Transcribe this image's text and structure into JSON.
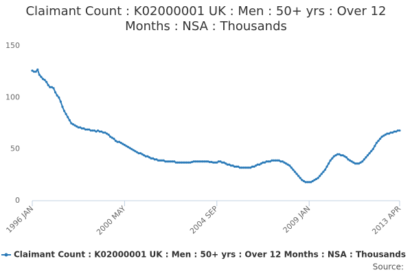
{
  "chart_data": {
    "type": "line",
    "title": "Claimant Count : K02000001 UK : Men : 50+ yrs : Over 12 Months : NSA : Thousands",
    "source": "Source:",
    "categories": [
      "1996 JAN",
      null,
      null,
      null,
      null,
      null,
      null,
      null,
      null,
      null,
      null,
      null,
      null,
      null,
      null,
      null,
      null,
      null,
      null,
      null,
      null,
      null,
      null,
      null,
      null,
      null,
      null,
      null,
      null,
      null,
      null,
      null,
      null,
      null,
      null,
      null,
      null,
      null,
      null,
      null,
      null,
      null,
      null,
      null,
      null,
      null,
      null,
      null,
      null,
      null,
      null,
      null,
      "2000 MAY",
      null,
      null,
      null,
      null,
      null,
      null,
      null,
      null,
      null,
      null,
      null,
      null,
      null,
      null,
      null,
      null,
      null,
      null,
      null,
      null,
      null,
      null,
      null,
      null,
      null,
      null,
      null,
      null,
      null,
      null,
      null,
      null,
      null,
      null,
      null,
      null,
      null,
      null,
      null,
      null,
      null,
      null,
      null,
      null,
      null,
      null,
      null,
      null,
      null,
      null,
      null,
      "2004 SEP",
      null,
      null,
      null,
      null,
      null,
      null,
      null,
      null,
      null,
      null,
      null,
      null,
      null,
      null,
      null,
      null,
      null,
      null,
      null,
      null,
      null,
      null,
      null,
      null,
      null,
      null,
      null,
      null,
      null,
      null,
      null,
      null,
      null,
      null,
      null,
      null,
      null,
      null,
      null,
      null,
      null,
      null,
      null,
      null,
      null,
      null,
      null,
      null,
      null,
      null,
      null,
      "2009 JAN",
      null,
      null,
      null,
      null,
      null,
      null,
      null,
      null,
      null,
      null,
      null,
      null,
      null,
      null,
      null,
      null,
      null,
      null,
      null,
      null,
      null,
      null,
      null,
      null,
      null,
      null,
      null,
      null,
      null,
      null,
      null,
      null,
      null,
      null,
      null,
      null,
      null,
      null,
      null,
      null,
      null,
      null,
      null,
      null,
      null,
      null,
      null,
      null,
      null,
      null,
      "2013 APR"
    ],
    "series": [
      {
        "name": "Claimant Count : K02000001 UK : Men : 50+ yrs : Over 12 Months : NSA : Thousands",
        "color": "#2a7ab8",
        "values": [
          126,
          125,
          125,
          127,
          122,
          120,
          118,
          117,
          115,
          112,
          110,
          110,
          109,
          105,
          102,
          100,
          96,
          91,
          87,
          84,
          81,
          78,
          75,
          74,
          73,
          72,
          71,
          71,
          70,
          70,
          69,
          69,
          69,
          68,
          68,
          68,
          67,
          68,
          67,
          67,
          66,
          66,
          65,
          64,
          62,
          61,
          60,
          58,
          57,
          57,
          56,
          55,
          54,
          53,
          52,
          51,
          50,
          49,
          48,
          47,
          46,
          46,
          45,
          44,
          43,
          43,
          42,
          41,
          41,
          40,
          40,
          39,
          39,
          39,
          39,
          38,
          38,
          38,
          38,
          38,
          38,
          37,
          37,
          37,
          37,
          37,
          37,
          37,
          37,
          37,
          37.5,
          38,
          38,
          38,
          38,
          38,
          38,
          38,
          38,
          38,
          37.5,
          37.5,
          37,
          37,
          37,
          38,
          38,
          37,
          37,
          36,
          35,
          35,
          34,
          34,
          33,
          33,
          33,
          32,
          32,
          32,
          32,
          32,
          32,
          32,
          33,
          33,
          34,
          35,
          35,
          36,
          37,
          37,
          38,
          38,
          38,
          39,
          39,
          39,
          39,
          39,
          38,
          38,
          37,
          36,
          35,
          34,
          32,
          30,
          28,
          26,
          24,
          22,
          20,
          19,
          18,
          18,
          18,
          18,
          19,
          20,
          21,
          22,
          24,
          26,
          28,
          30,
          33,
          36,
          39,
          41,
          43,
          44,
          45,
          45,
          44,
          44,
          43,
          42,
          40,
          39,
          38,
          37,
          36,
          36,
          36,
          37,
          38,
          40,
          42,
          44,
          46,
          48,
          50,
          53,
          56,
          58,
          60,
          62,
          63,
          64,
          65,
          65,
          66,
          66,
          67,
          67,
          68,
          68
        ]
      }
    ],
    "ylim": [
      0,
      150
    ],
    "yticks": [
      0,
      50,
      100,
      150
    ],
    "grid": false
  }
}
